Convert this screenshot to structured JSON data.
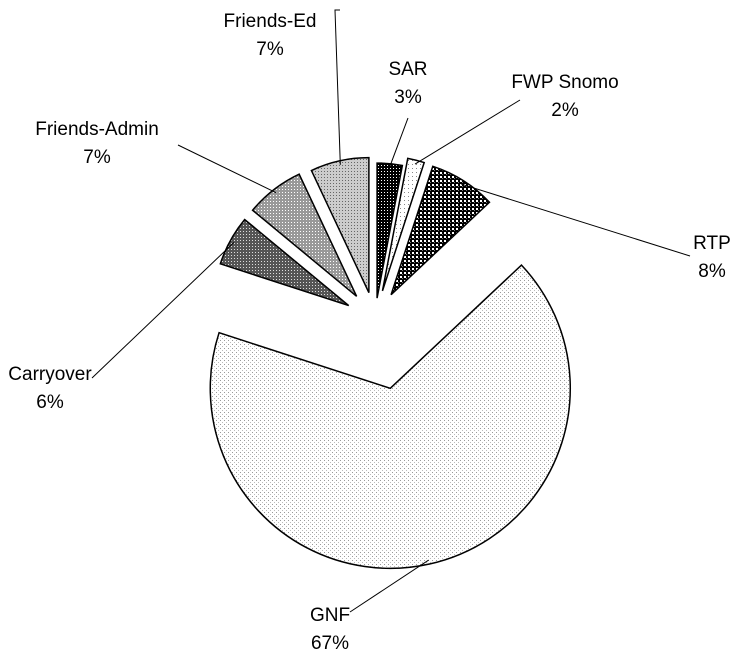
{
  "chart_data": {
    "type": "pie",
    "categories": [
      "SAR",
      "FWP Snomo",
      "RTP",
      "GNF",
      "Carryover",
      "Friends-Admin",
      "Friends-Ed"
    ],
    "values": [
      3,
      2,
      8,
      67,
      6,
      7,
      7
    ],
    "value_labels": [
      "3%",
      "2%",
      "8%",
      "67%",
      "6%",
      "7%",
      "7%"
    ]
  }
}
